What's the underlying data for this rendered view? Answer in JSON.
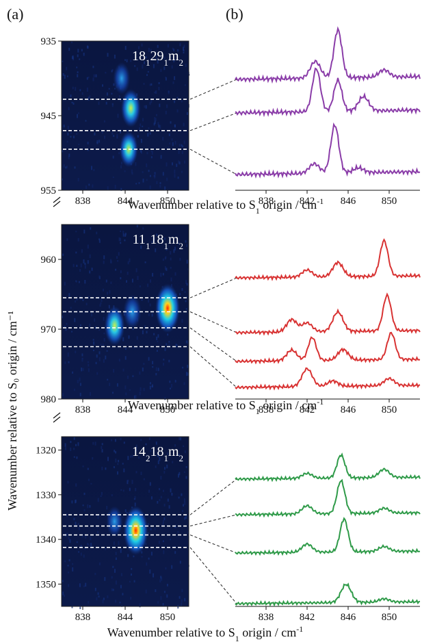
{
  "figure": {
    "label_a": "(a)",
    "label_b": "(b)",
    "ylabel": "Wavenumber relative to S₀ origin / cm⁻¹",
    "xlabel_parts": [
      "Wavenumber relative to S",
      "1",
      " origin / cm",
      "-1"
    ]
  },
  "chart_data": [
    {
      "type": "heatmap",
      "panel": "a1",
      "band_label": {
        "parts": [
          "18",
          "1",
          "29",
          "1",
          "m",
          "2"
        ]
      },
      "xticks": [
        838,
        844,
        850
      ],
      "xlim": [
        835,
        853
      ],
      "yticks": [
        935,
        945,
        955
      ],
      "ylim": [
        935,
        955
      ],
      "cut_positions": [
        942.8,
        947.0,
        949.5
      ],
      "hotspots": [
        {
          "x": 844.8,
          "y": 944.0,
          "intensity": 0.55
        },
        {
          "x": 844.5,
          "y": 949.5,
          "intensity": 0.45
        },
        {
          "x": 843.5,
          "y": 940.0,
          "intensity": 0.3
        }
      ]
    },
    {
      "type": "line",
      "panel": "b1",
      "color": "#8a3ca8",
      "xticks": [
        838,
        842,
        846,
        850
      ],
      "xlim": [
        835,
        853
      ],
      "peaks_per_trace": [
        [
          {
            "x": 842.8,
            "h": 0.35
          },
          {
            "x": 845.0,
            "h": 1.0
          },
          {
            "x": 849.5,
            "h": 0.15
          }
        ],
        [
          {
            "x": 842.9,
            "h": 0.9
          },
          {
            "x": 845.0,
            "h": 0.65
          },
          {
            "x": 847.5,
            "h": 0.3
          }
        ],
        [
          {
            "x": 842.7,
            "h": 0.2
          },
          {
            "x": 844.7,
            "h": 1.0
          },
          {
            "x": 847.0,
            "h": 0.1
          }
        ]
      ]
    },
    {
      "type": "heatmap",
      "panel": "a2",
      "band_label": {
        "parts": [
          "11",
          "1",
          "18",
          "1",
          "m",
          "2"
        ]
      },
      "xticks": [
        838,
        844,
        850
      ],
      "xlim": [
        835,
        853
      ],
      "yticks": [
        960,
        970,
        980
      ],
      "ylim": [
        955,
        980
      ],
      "cut_positions": [
        965.5,
        967.5,
        969.8,
        972.5
      ],
      "hotspots": [
        {
          "x": 850.0,
          "y": 967.0,
          "intensity": 1.0
        },
        {
          "x": 842.5,
          "y": 969.5,
          "intensity": 0.6
        },
        {
          "x": 845.0,
          "y": 967.5,
          "intensity": 0.4
        }
      ]
    },
    {
      "type": "line",
      "panel": "b2",
      "color": "#d83232",
      "xticks": [
        838,
        842,
        846,
        850
      ],
      "xlim": [
        835,
        853
      ],
      "peaks_per_trace": [
        [
          {
            "x": 842.0,
            "h": 0.2
          },
          {
            "x": 845.0,
            "h": 0.4
          },
          {
            "x": 849.5,
            "h": 1.0
          }
        ],
        [
          {
            "x": 840.5,
            "h": 0.35
          },
          {
            "x": 842.0,
            "h": 0.25
          },
          {
            "x": 845.0,
            "h": 0.55
          },
          {
            "x": 849.8,
            "h": 1.0
          }
        ],
        [
          {
            "x": 840.5,
            "h": 0.3
          },
          {
            "x": 842.5,
            "h": 0.65
          },
          {
            "x": 845.5,
            "h": 0.3
          },
          {
            "x": 850.2,
            "h": 0.75
          }
        ],
        [
          {
            "x": 842.0,
            "h": 0.5
          },
          {
            "x": 844.5,
            "h": 0.15
          },
          {
            "x": 850.0,
            "h": 0.2
          }
        ]
      ]
    },
    {
      "type": "heatmap",
      "panel": "a3",
      "band_label": {
        "parts": [
          "14",
          "2",
          "18",
          "1",
          "m",
          "2"
        ]
      },
      "xticks": [
        838,
        844,
        850
      ],
      "xlim": [
        835,
        853
      ],
      "yticks": [
        1320,
        1330,
        1340,
        1350
      ],
      "ylim": [
        1317,
        1355
      ],
      "cut_positions": [
        1334.5,
        1337.0,
        1339.0,
        1341.8
      ],
      "hotspots": [
        {
          "x": 845.5,
          "y": 1338.0,
          "intensity": 1.0
        },
        {
          "x": 842.5,
          "y": 1336.0,
          "intensity": 0.25
        }
      ]
    },
    {
      "type": "line",
      "panel": "b3",
      "color": "#2e9a48",
      "xticks": [
        838,
        842,
        846,
        850
      ],
      "xlim": [
        835,
        853
      ],
      "peaks_per_trace": [
        [
          {
            "x": 842.0,
            "h": 0.15
          },
          {
            "x": 845.3,
            "h": 0.7
          },
          {
            "x": 849.5,
            "h": 0.25
          }
        ],
        [
          {
            "x": 842.0,
            "h": 0.25
          },
          {
            "x": 845.3,
            "h": 1.0
          },
          {
            "x": 849.5,
            "h": 0.15
          }
        ],
        [
          {
            "x": 842.0,
            "h": 0.25
          },
          {
            "x": 845.6,
            "h": 1.0
          },
          {
            "x": 849.5,
            "h": 0.15
          }
        ],
        [
          {
            "x": 845.8,
            "h": 0.55
          },
          {
            "x": 849.5,
            "h": 0.1
          }
        ]
      ]
    }
  ]
}
